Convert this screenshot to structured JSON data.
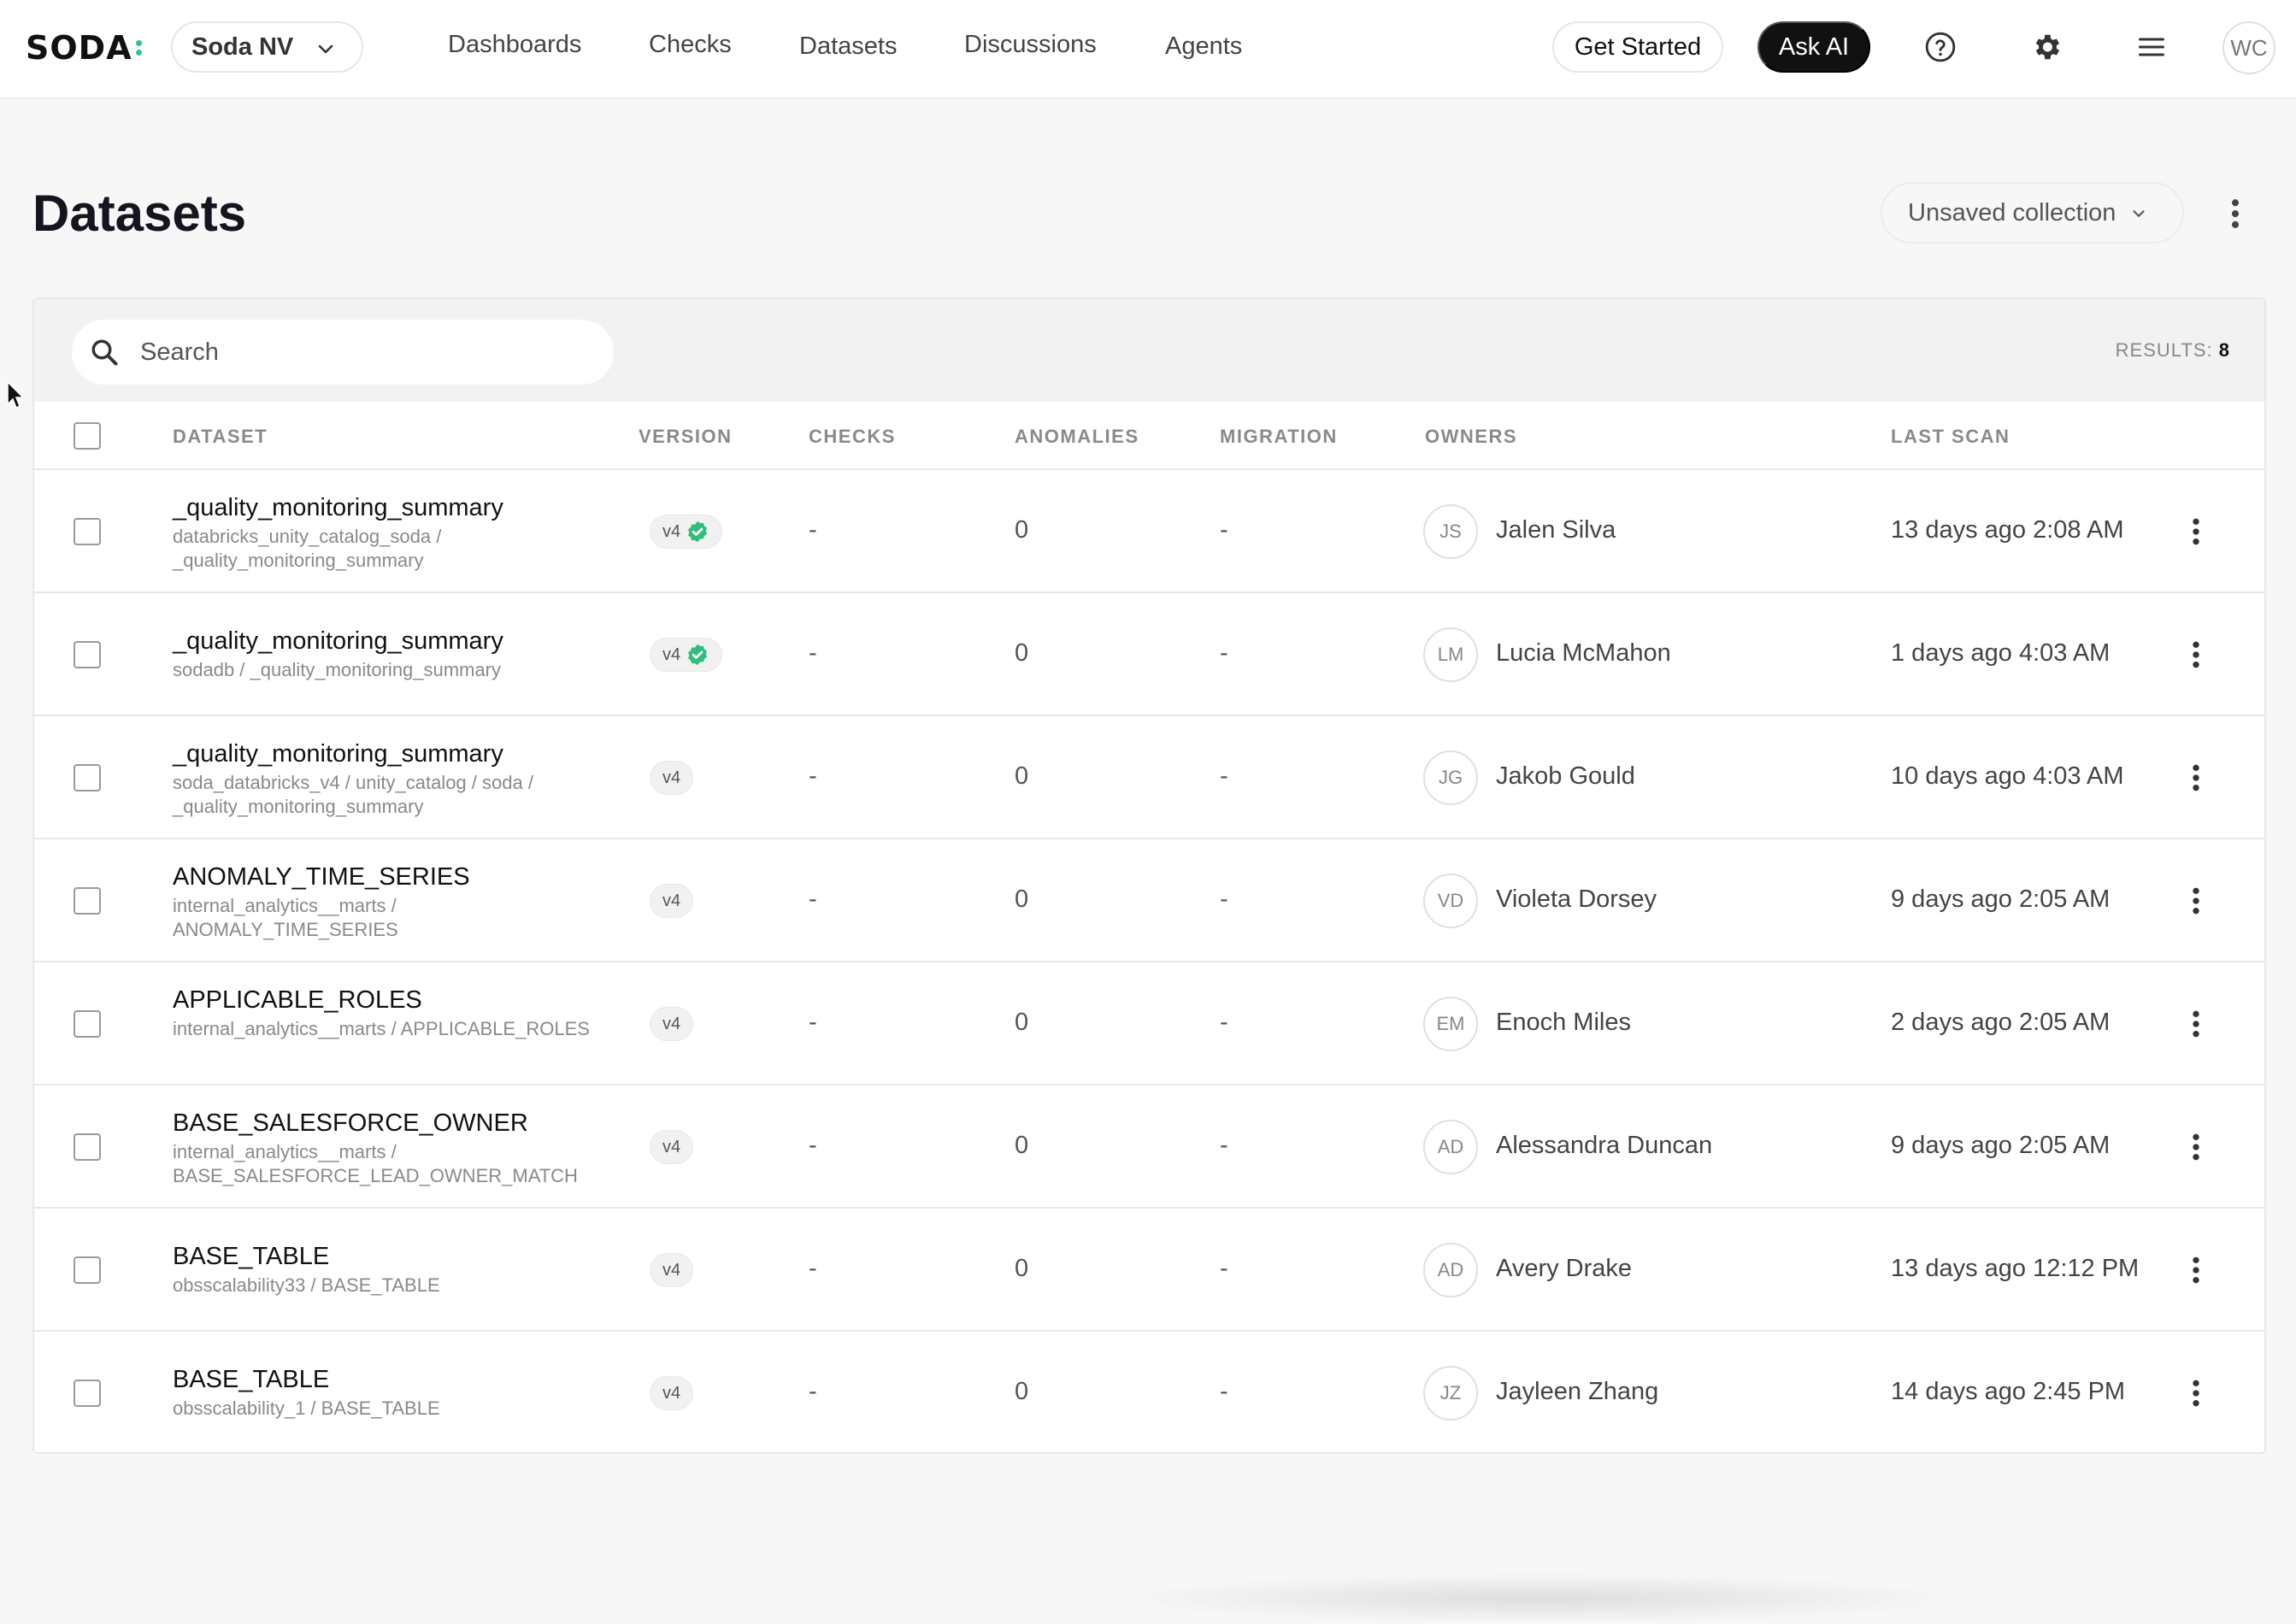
{
  "nav": {
    "logo": "SODA",
    "org": "Soda NV",
    "links": [
      "Dashboards",
      "Checks",
      "Datasets",
      "Discussions",
      "Agents"
    ],
    "get_started": "Get Started",
    "ask_ai": "Ask AI",
    "user_initials": "WC",
    "icons": [
      "help-icon",
      "gear-icon",
      "menu-icon"
    ]
  },
  "header": {
    "title": "Datasets",
    "collection": "Unsaved collection"
  },
  "search": {
    "placeholder": "Search",
    "value": ""
  },
  "results": {
    "label": "RESULTS:",
    "count": "8"
  },
  "columns": [
    "DATASET",
    "VERSION",
    "CHECKS",
    "ANOMALIES",
    "MIGRATION",
    "OWNERS",
    "LAST SCAN"
  ],
  "rows": [
    {
      "name": "_quality_monitoring_summary",
      "path": "databricks_unity_catalog_soda / _quality_monitoring_summary",
      "version": "v4",
      "verified": true,
      "checks": "-",
      "anomalies": "0",
      "migration": "-",
      "owner_initials": "JS",
      "owner": "Jalen Silva",
      "last_scan": "13 days ago 2:08 AM"
    },
    {
      "name": "_quality_monitoring_summary",
      "path": "sodadb / _quality_monitoring_summary",
      "version": "v4",
      "verified": true,
      "checks": "-",
      "anomalies": "0",
      "migration": "-",
      "owner_initials": "LM",
      "owner": "Lucia McMahon",
      "last_scan": "1 days ago 4:03 AM"
    },
    {
      "name": "_quality_monitoring_summary",
      "path": "soda_databricks_v4 / unity_catalog / soda / _quality_monitoring_summary",
      "version": "v4",
      "verified": false,
      "checks": "-",
      "anomalies": "0",
      "migration": "-",
      "owner_initials": "JG",
      "owner": "Jakob Gould",
      "last_scan": "10 days ago 4:03 AM"
    },
    {
      "name": "ANOMALY_TIME_SERIES",
      "path": "internal_analytics__marts / ANOMALY_TIME_SERIES",
      "version": "v4",
      "verified": false,
      "checks": "-",
      "anomalies": "0",
      "migration": "-",
      "owner_initials": "VD",
      "owner": "Violeta Dorsey",
      "last_scan": "9 days ago 2:05 AM"
    },
    {
      "name": "APPLICABLE_ROLES",
      "path": "internal_analytics__marts / APPLICABLE_ROLES",
      "version": "v4",
      "verified": false,
      "checks": "-",
      "anomalies": "0",
      "migration": "-",
      "owner_initials": "EM",
      "owner": "Enoch Miles",
      "last_scan": "2 days ago 2:05 AM"
    },
    {
      "name": "BASE_SALESFORCE_OWNER",
      "path": "internal_analytics__marts / BASE_SALESFORCE_LEAD_OWNER_MATCH",
      "version": "v4",
      "verified": false,
      "checks": "-",
      "anomalies": "0",
      "migration": "-",
      "owner_initials": "AD",
      "owner": "Alessandra Duncan",
      "last_scan": "9 days ago 2:05 AM"
    },
    {
      "name": "BASE_TABLE",
      "path": "obsscalability33 / BASE_TABLE",
      "version": "v4",
      "verified": false,
      "checks": "-",
      "anomalies": "0",
      "migration": "-",
      "owner_initials": "AD",
      "owner": "Avery Drake",
      "last_scan": "13 days ago 12:12 PM"
    },
    {
      "name": "BASE_TABLE",
      "path": "obsscalability_1 / BASE_TABLE",
      "version": "v4",
      "verified": false,
      "checks": "-",
      "anomalies": "0",
      "migration": "-",
      "owner_initials": "JZ",
      "owner": "Jayleen Zhang",
      "last_scan": "14 days ago 2:45 PM"
    }
  ],
  "colors": {
    "accent": "#2fc489",
    "dark_button": "#111111",
    "verified": "#2fbf7a"
  }
}
